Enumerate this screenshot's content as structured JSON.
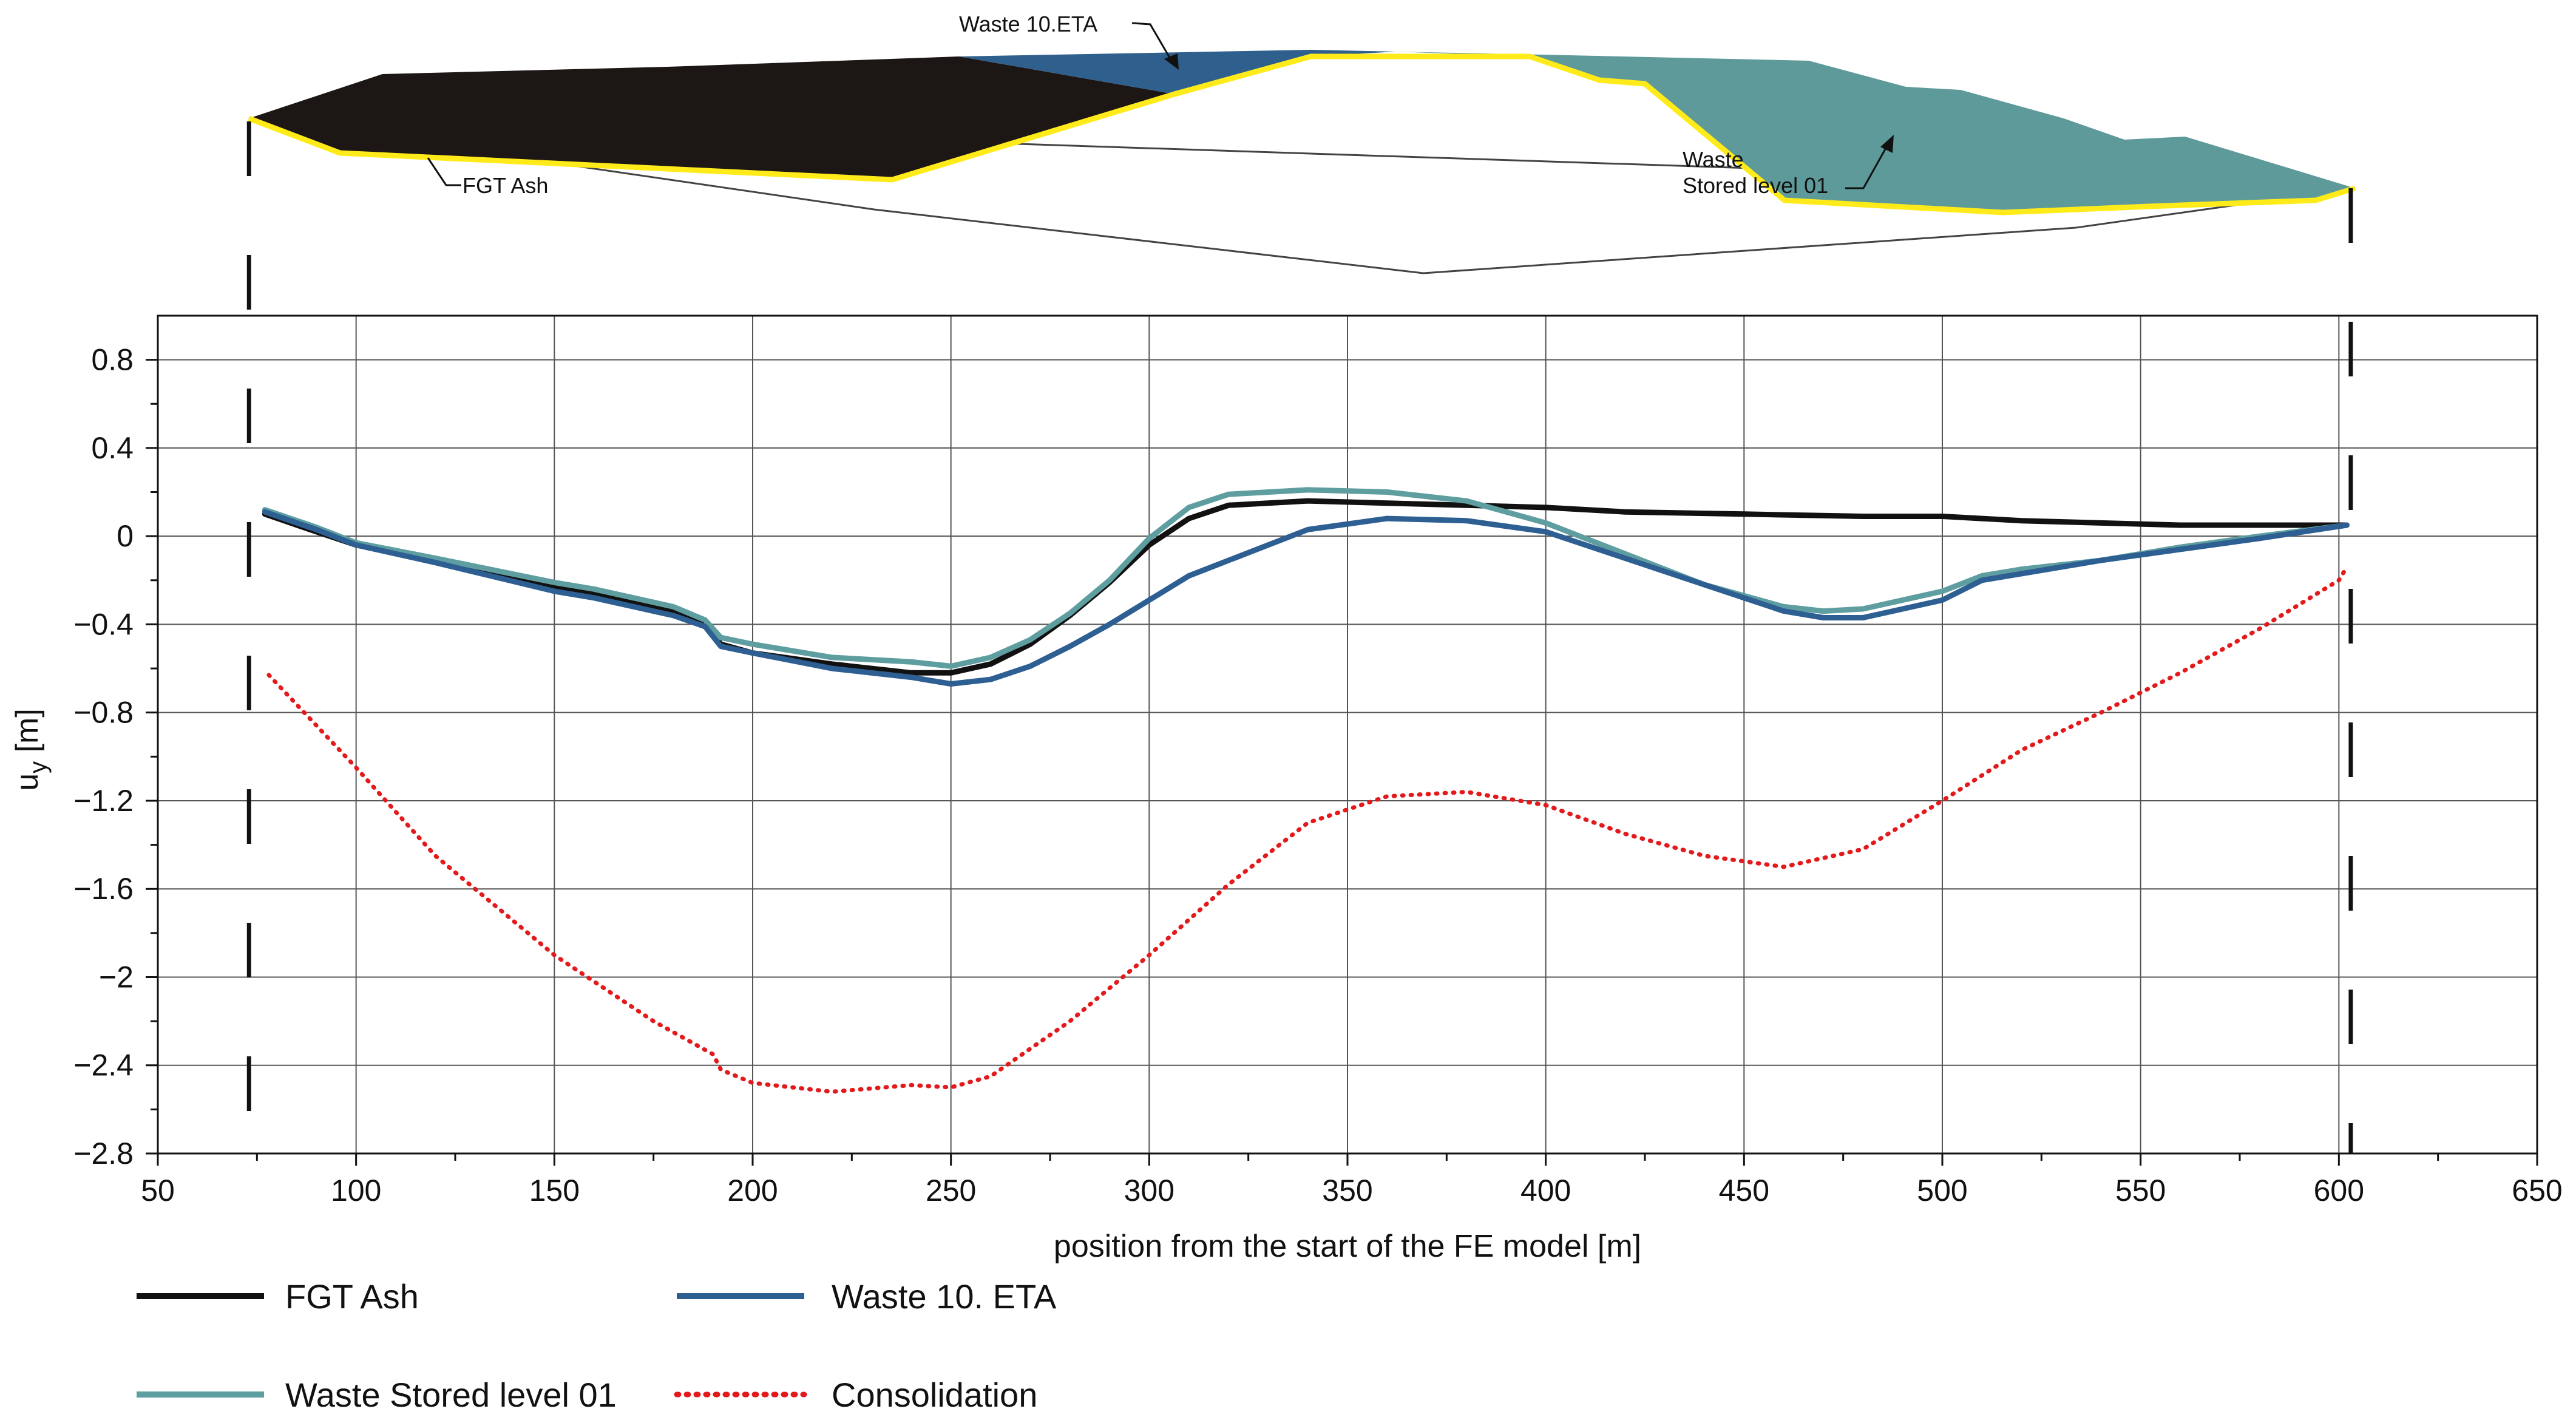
{
  "chart_data": {
    "type": "line",
    "xlabel": "position from the start of the FE model [m]",
    "ylabel": "uy [m]",
    "xlim": [
      50,
      650
    ],
    "ylim": [
      -2.8,
      1.0
    ],
    "x_ticks": [
      50,
      100,
      150,
      200,
      250,
      300,
      350,
      400,
      450,
      500,
      550,
      600,
      650
    ],
    "y_ticks": [
      0.8,
      0.4,
      0,
      -0.4,
      -0.8,
      -1.2,
      -1.6,
      -2,
      -2.4,
      -2.8
    ],
    "x_tick_labels": [
      "50",
      "100",
      "150",
      "200",
      "250",
      "300",
      "350",
      "400",
      "450",
      "500",
      "550",
      "600",
      "650"
    ],
    "y_tick_labels": [
      "0.8",
      "0.4",
      "0",
      "−0.4",
      "−0.8",
      "−1.2",
      "−1.6",
      "−2",
      "−2.4",
      "−2.8"
    ],
    "grid": true,
    "model_boundaries_x": [
      73,
      603
    ],
    "series": [
      {
        "name": "FGT Ash",
        "color": "#111111",
        "style": "solid",
        "x": [
          77,
          90,
          100,
          120,
          150,
          160,
          180,
          188,
          192,
          200,
          220,
          240,
          250,
          260,
          270,
          280,
          290,
          300,
          310,
          320,
          340,
          360,
          380,
          400,
          420,
          450,
          480,
          500,
          510,
          520,
          540,
          560,
          580,
          602
        ],
        "y": [
          0.1,
          0.02,
          -0.04,
          -0.11,
          -0.23,
          -0.26,
          -0.34,
          -0.4,
          -0.49,
          -0.53,
          -0.58,
          -0.62,
          -0.62,
          -0.58,
          -0.49,
          -0.36,
          -0.21,
          -0.04,
          0.08,
          0.14,
          0.16,
          0.15,
          0.14,
          0.13,
          0.11,
          0.1,
          0.09,
          0.09,
          0.08,
          0.07,
          0.06,
          0.05,
          0.05,
          0.05
        ]
      },
      {
        "name": "Waste Stored level 01",
        "color": "#5f9ea0",
        "style": "solid",
        "x": [
          77,
          90,
          100,
          120,
          150,
          160,
          180,
          188,
          192,
          200,
          220,
          240,
          250,
          260,
          270,
          280,
          290,
          300,
          310,
          320,
          340,
          360,
          380,
          400,
          420,
          440,
          460,
          470,
          480,
          500,
          510,
          520,
          540,
          560,
          580,
          602
        ],
        "y": [
          0.12,
          0.04,
          -0.03,
          -0.1,
          -0.21,
          -0.24,
          -0.32,
          -0.38,
          -0.46,
          -0.49,
          -0.55,
          -0.57,
          -0.59,
          -0.55,
          -0.47,
          -0.35,
          -0.2,
          -0.01,
          0.13,
          0.19,
          0.21,
          0.2,
          0.16,
          0.06,
          -0.08,
          -0.22,
          -0.32,
          -0.34,
          -0.33,
          -0.25,
          -0.18,
          -0.15,
          -0.11,
          -0.05,
          0.0,
          0.05
        ]
      },
      {
        "name": "Waste 10. ETA",
        "color": "#2e5f93",
        "style": "solid",
        "x": [
          77,
          90,
          100,
          120,
          150,
          160,
          180,
          188,
          192,
          200,
          220,
          240,
          250,
          260,
          270,
          280,
          290,
          300,
          310,
          320,
          340,
          360,
          380,
          400,
          420,
          440,
          460,
          470,
          480,
          500,
          510,
          520,
          540,
          560,
          580,
          602
        ],
        "y": [
          0.11,
          0.03,
          -0.04,
          -0.12,
          -0.25,
          -0.28,
          -0.36,
          -0.41,
          -0.5,
          -0.53,
          -0.6,
          -0.64,
          -0.67,
          -0.65,
          -0.59,
          -0.5,
          -0.4,
          -0.29,
          -0.18,
          -0.11,
          0.03,
          0.08,
          0.07,
          0.02,
          -0.1,
          -0.22,
          -0.34,
          -0.37,
          -0.37,
          -0.29,
          -0.2,
          -0.17,
          -0.11,
          -0.06,
          -0.01,
          0.05
        ]
      },
      {
        "name": "Consolidation",
        "color": "#e31a1c",
        "style": "dotted",
        "x": [
          78,
          100,
          120,
          150,
          175,
          190,
          192,
          200,
          220,
          240,
          250,
          260,
          280,
          300,
          320,
          340,
          360,
          380,
          400,
          420,
          440,
          460,
          480,
          500,
          520,
          540,
          560,
          580,
          600,
          602
        ],
        "y": [
          -0.63,
          -1.05,
          -1.45,
          -1.9,
          -2.2,
          -2.35,
          -2.42,
          -2.48,
          -2.52,
          -2.49,
          -2.5,
          -2.45,
          -2.2,
          -1.9,
          -1.58,
          -1.3,
          -1.18,
          -1.16,
          -1.22,
          -1.35,
          -1.45,
          -1.5,
          -1.42,
          -1.2,
          -0.97,
          -0.8,
          -0.62,
          -0.42,
          -0.2,
          -0.14
        ]
      }
    ],
    "legend": [
      "FGT Ash",
      "Waste Stored level 01",
      "Waste 10. ETA",
      "Consolidation"
    ],
    "legend_position": "bottom-left"
  },
  "cross_section": {
    "labels": {
      "eta": "Waste 10.ETA",
      "fgt": "FGT Ash",
      "stored_line1": "Waste",
      "stored_line2": "Stored level 01"
    },
    "colors": {
      "fgt": "#1c1614",
      "eta": "#2f5f8c",
      "stored": "#5f9a9a",
      "boundary": "#ffeb1a"
    }
  }
}
